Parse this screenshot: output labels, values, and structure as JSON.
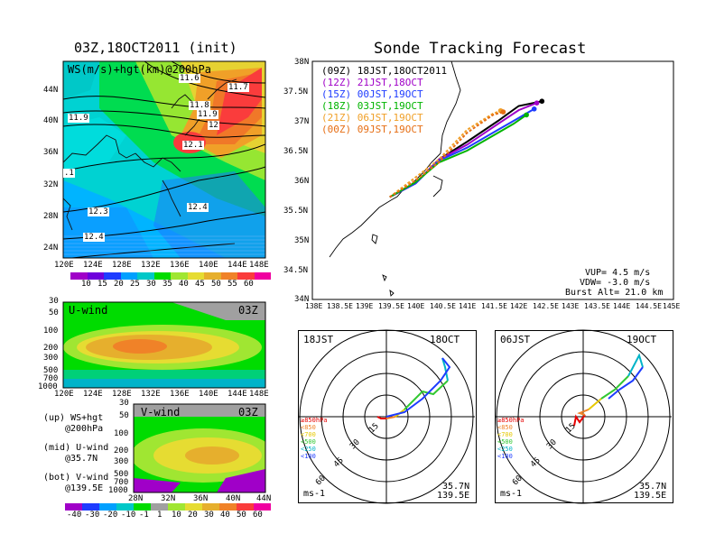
{
  "main_title": "03Z,18OCT2011 (init)",
  "right_title": "Sonde Tracking Forecast",
  "map_panel": {
    "label": "WS(m/s)+hgt(km)@200hPa",
    "lat_ticks": [
      "44N",
      "40N",
      "36N",
      "32N",
      "28N",
      "24N"
    ],
    "lon_ticks": [
      "120E",
      "124E",
      "128E",
      "132E",
      "136E",
      "140E",
      "144E",
      "148E"
    ],
    "contour_labels": [
      "11.6",
      "11.7",
      "11.8",
      "11.9",
      "12",
      "12.1",
      "11.9",
      "12.3",
      "12.4",
      "12.4",
      ".1"
    ],
    "colorbar_ticks": [
      "10",
      "15",
      "20",
      "25",
      "30",
      "35",
      "40",
      "45",
      "50",
      "55",
      "60"
    ],
    "colorbar_colors": [
      "#a000c8",
      "#6e00dc",
      "#1e3cff",
      "#00a0ff",
      "#00c8c8",
      "#00dc00",
      "#a0e632",
      "#e6dc32",
      "#e6af2d",
      "#f08228",
      "#fa3c3c",
      "#f000a0"
    ]
  },
  "uwind_panel": {
    "label": "U-wind",
    "time": "03Z",
    "y_ticks": [
      "30",
      "50",
      "100",
      "200",
      "300",
      "500",
      "700",
      "1000"
    ],
    "x_ticks": [
      "120E",
      "124E",
      "128E",
      "132E",
      "136E",
      "140E",
      "144E",
      "148E"
    ]
  },
  "vwind_panel": {
    "label": "V-wind",
    "time": "03Z",
    "y_ticks": [
      "30",
      "50",
      "100",
      "200",
      "300",
      "500",
      "700",
      "1000"
    ],
    "x_ticks": [
      "28N",
      "32N",
      "36N",
      "40N",
      "44N"
    ],
    "colorbar_ticks": [
      "-40",
      "-30",
      "-20",
      "-10",
      "-1",
      "1",
      "10",
      "20",
      "30",
      "40",
      "50",
      "60"
    ],
    "colorbar_colors": [
      "#a000c8",
      "#1e3cff",
      "#00a0ff",
      "#00c8c8",
      "#00dc00",
      "#a0a0a0",
      "#a0e632",
      "#e6dc32",
      "#e6af2d",
      "#f08228",
      "#fa3c3c",
      "#f000a0"
    ]
  },
  "legend_notes": {
    "up": "(up) WS+hgt",
    "up_sub": "@200hPa",
    "mid": "(mid) U-wind",
    "mid_sub": "@35.7N",
    "bot": "(bot) V-wind",
    "bot_sub": "@139.5E"
  },
  "track_panel": {
    "lat_ticks": [
      "38N",
      "37.5N",
      "37N",
      "36.5N",
      "36N",
      "35.5N",
      "35N",
      "34.5N",
      "34N"
    ],
    "lon_ticks": [
      "138E",
      "138.5E",
      "139E",
      "139.5E",
      "140E",
      "140.5E",
      "141E",
      "141.5E",
      "142E",
      "142.5E",
      "143E",
      "143.5E",
      "144E",
      "144.5E",
      "145E"
    ],
    "launches": [
      {
        "code": "(09Z)",
        "time": "18JST,18OCT2011",
        "color": "#000000"
      },
      {
        "code": "(12Z)",
        "time": "21JST,18OCT",
        "color": "#a000c8"
      },
      {
        "code": "(15Z)",
        "time": "00JST,19OCT",
        "color": "#1e3cff"
      },
      {
        "code": "(18Z)",
        "time": "03JST,19OCT",
        "color": "#00b400"
      },
      {
        "code": "(21Z)",
        "time": "06JST,19OCT",
        "color": "#f0a028"
      },
      {
        "code": "(00Z)",
        "time": "09JST,19OCT",
        "color": "#e66e14"
      }
    ],
    "params": [
      "VUP= 4.5 m/s",
      "VDW= -3.0 m/s",
      "Burst Alt= 21.0 km"
    ]
  },
  "hodographs": [
    {
      "time": "18JST",
      "date": "18OCT",
      "ring_labels": [
        "15",
        "30",
        "45",
        "60"
      ],
      "unit": "ms-1",
      "lat": "35.7N",
      "lon": "139.5E"
    },
    {
      "time": "06JST",
      "date": "19OCT",
      "ring_labels": [
        "15",
        "30",
        "45",
        "60"
      ],
      "unit": "ms-1",
      "lat": "35.7N",
      "lon": "139.5E"
    }
  ],
  "pressure_legend": [
    {
      "label": "≥850hPa",
      "color": "#e60000"
    },
    {
      "label": "<850",
      "color": "#f08228"
    },
    {
      "label": "<700",
      "color": "#e6c800"
    },
    {
      "label": "<500",
      "color": "#32c832"
    },
    {
      "label": "<250",
      "color": "#00b4c8"
    },
    {
      "label": "<100",
      "color": "#1e3cff"
    }
  ],
  "chart_data": [
    {
      "type": "line",
      "title": "Sonde Tracking Forecast",
      "xlabel": "",
      "ylabel": "",
      "xlim": [
        138,
        145
      ],
      "ylim": [
        34,
        38
      ],
      "series": [
        {
          "name": "(09Z) 18JST,18OCT2011",
          "points": [
            [
              139.5,
              35.72
            ],
            [
              140.0,
              35.95
            ],
            [
              140.45,
              36.35
            ],
            [
              141.0,
              36.65
            ],
            [
              141.6,
              37.0
            ],
            [
              142.0,
              37.25
            ],
            [
              142.45,
              37.33
            ]
          ]
        },
        {
          "name": "(12Z) 21JST,18OCT",
          "points": [
            [
              139.5,
              35.72
            ],
            [
              140.0,
              35.95
            ],
            [
              140.45,
              36.35
            ],
            [
              141.0,
              36.6
            ],
            [
              141.6,
              36.95
            ],
            [
              142.0,
              37.18
            ],
            [
              142.35,
              37.3
            ]
          ]
        },
        {
          "name": "(15Z) 00JST,19OCT",
          "points": [
            [
              139.5,
              35.72
            ],
            [
              140.0,
              35.95
            ],
            [
              140.45,
              36.33
            ],
            [
              141.0,
              36.55
            ],
            [
              141.6,
              36.85
            ],
            [
              142.0,
              37.05
            ],
            [
              142.3,
              37.2
            ]
          ]
        },
        {
          "name": "(18Z) 03JST,19OCT",
          "points": [
            [
              139.5,
              35.72
            ],
            [
              140.0,
              35.97
            ],
            [
              140.45,
              36.3
            ],
            [
              141.0,
              36.5
            ],
            [
              141.5,
              36.75
            ],
            [
              141.9,
              36.95
            ],
            [
              142.15,
              37.1
            ]
          ]
        },
        {
          "name": "(21Z) 06JST,19OCT",
          "points": [
            [
              139.5,
              35.72
            ],
            [
              140.0,
              36.05
            ],
            [
              140.45,
              36.35
            ],
            [
              141.0,
              36.85
            ],
            [
              141.5,
              37.12
            ],
            [
              141.65,
              37.17
            ]
          ]
        },
        {
          "name": "(00Z) 09JST,19OCT",
          "points": [
            [
              139.5,
              35.72
            ],
            [
              140.0,
              36.0
            ],
            [
              140.45,
              36.3
            ],
            [
              141.0,
              36.8
            ],
            [
              141.5,
              37.1
            ],
            [
              141.7,
              37.15
            ]
          ]
        }
      ]
    }
  ]
}
